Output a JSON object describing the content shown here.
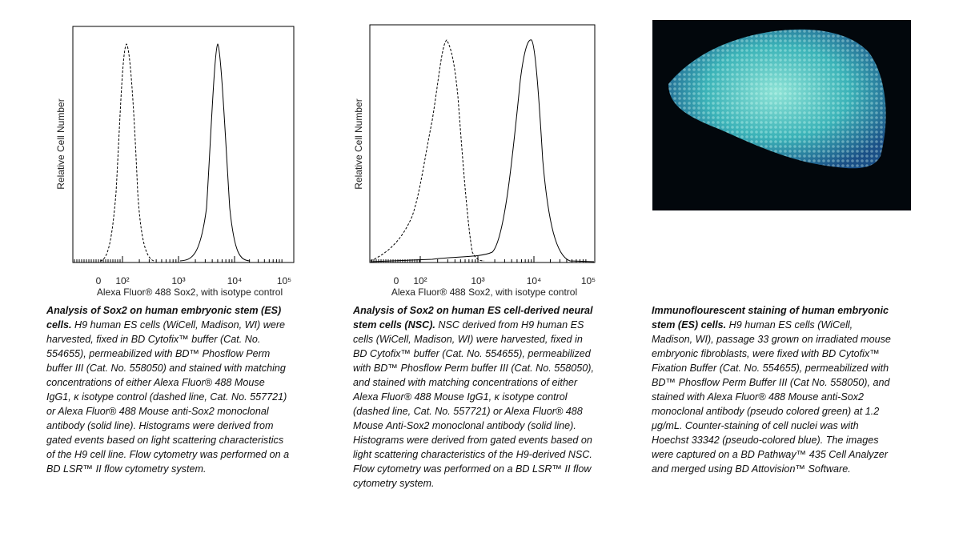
{
  "panels": [
    {
      "plot": {
        "y_label": "Relative Cell Number",
        "x_label": "Alexa Fluor® 488 Sox2, with isotype control",
        "x_ticks": [
          "0",
          "10²",
          "10³",
          "10⁴",
          "10⁵"
        ]
      },
      "caption_title": "Analysis of Sox2 on human embryonic stem (ES) cells.",
      "caption_body": "H9 human ES cells (WiCell, Madison, WI) were harvested, fixed in BD Cytofix™ buffer (Cat. No. 554655), permeabilized with BD™ Phosflow Perm buffer III (Cat. No. 558050) and stained with matching concentrations of either Alexa Fluor® 488 Mouse IgG1, κ isotype control (dashed line, Cat. No. 557721) or Alexa Fluor® 488 Mouse anti-Sox2 monoclonal antibody (solid line). Histograms were derived from gated events based on light scattering characteristics of the H9 cell line. Flow cytometry was performed on a BD LSR™ II flow cytometry system."
    },
    {
      "plot": {
        "y_label": "Relative Cell Number",
        "x_label": "Alexa Fluor® 488 Sox2, with isotype control",
        "x_ticks": [
          "0",
          "10²",
          "10³",
          "10⁴",
          "10⁵"
        ]
      },
      "caption_title": "Analysis of Sox2 on human ES cell-derived neural stem cells (NSC).",
      "caption_body": "NSC derived from H9 human ES cells (WiCell, Madison, WI) were harvested, fixed in BD Cytofix™ buffer (Cat. No. 554655), permeabilized with BD™ Phosflow Perm buffer III (Cat. No. 558050), and stained with matching concentrations of either Alexa Fluor® 488 Mouse IgG1, κ isotype control (dashed line, Cat. No. 557721) or Alexa Fluor® 488 Mouse Anti-Sox2 monoclonal antibody (solid line). Histograms were derived from gated events based on light scattering characteristics of the H9-derived NSC. Flow cytometry was performed on a BD LSR™ II flow cytometry system."
    },
    {
      "caption_title": "Immunoflourescent staining of human embryonic stem (ES) cells.",
      "caption_body": "H9 human ES cells (WiCell, Madison, WI), passage 33 grown on irradiated mouse embryonic fibroblasts, were fixed with BD Cytofix™ Fixation Buffer (Cat. No. 554655), permeabilized with BD™ Phosflow Perm Buffer III (Cat No. 558050), and stained with Alexa Fluor® 488 Mouse anti-Sox2 monoclonal antibody (pseudo colored green) at 1.2 μg/mL. Counter-staining of cell nuclei was with Hoechst 33342 (pseudo-colored blue). The images were captured on a BD Pathway™ 435 Cell Analyzer and merged using BD Attovision™ Software."
    }
  ]
}
